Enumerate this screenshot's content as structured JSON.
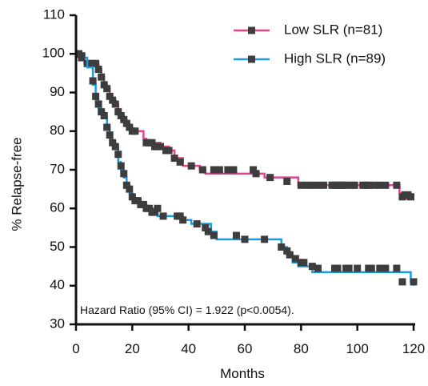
{
  "chart_data": {
    "type": "line",
    "title": "",
    "xlabel": "Months",
    "ylabel": "% Relapse-free",
    "xlim": [
      0,
      120
    ],
    "ylim": [
      30,
      110
    ],
    "xticks": [
      0,
      20,
      40,
      60,
      80,
      100,
      120
    ],
    "yticks": [
      30,
      40,
      50,
      60,
      70,
      80,
      90,
      100,
      110
    ],
    "grid": false,
    "legend_position": "top-right",
    "annotation": "Hazard Ratio (95% CI) = 1.922 (p<0.0054).",
    "censor_color": "#3d3d3d",
    "series": [
      {
        "name": "Low SLR (n=81)",
        "color": "#e8428c",
        "steps": [
          [
            0,
            100
          ],
          [
            1,
            99
          ],
          [
            3,
            97.5
          ],
          [
            8,
            96
          ],
          [
            9,
            94
          ],
          [
            10,
            92
          ],
          [
            11,
            91
          ],
          [
            12,
            89
          ],
          [
            13,
            88
          ],
          [
            14,
            87
          ],
          [
            15,
            85
          ],
          [
            16,
            84
          ],
          [
            17,
            83
          ],
          [
            18,
            82
          ],
          [
            19,
            81
          ],
          [
            20,
            80
          ],
          [
            24,
            78
          ],
          [
            25,
            77
          ],
          [
            30,
            76
          ],
          [
            33,
            75
          ],
          [
            35,
            73
          ],
          [
            38,
            71
          ],
          [
            44,
            70
          ],
          [
            46,
            69
          ],
          [
            67,
            68
          ],
          [
            79,
            66
          ],
          [
            115,
            64
          ],
          [
            116,
            62.5
          ],
          [
            120,
            62.5
          ]
        ],
        "censored": [
          [
            1,
            100
          ],
          [
            2,
            99
          ],
          [
            4,
            97.5
          ],
          [
            5,
            97.5
          ],
          [
            6,
            97.5
          ],
          [
            7,
            97.5
          ],
          [
            8,
            96
          ],
          [
            9,
            94
          ],
          [
            10,
            92
          ],
          [
            11,
            91
          ],
          [
            12,
            89
          ],
          [
            13,
            88
          ],
          [
            14,
            87
          ],
          [
            15,
            85
          ],
          [
            16,
            84
          ],
          [
            17,
            83
          ],
          [
            18,
            82
          ],
          [
            19,
            81
          ],
          [
            20,
            80
          ],
          [
            21,
            80
          ],
          [
            25,
            77
          ],
          [
            26,
            77
          ],
          [
            27,
            77
          ],
          [
            28,
            76
          ],
          [
            29,
            76
          ],
          [
            30,
            76
          ],
          [
            32,
            75
          ],
          [
            33,
            75
          ],
          [
            35,
            73
          ],
          [
            37,
            72
          ],
          [
            41,
            71
          ],
          [
            45,
            70
          ],
          [
            49,
            70
          ],
          [
            51,
            70
          ],
          [
            54,
            70
          ],
          [
            56,
            70
          ],
          [
            63,
            70
          ],
          [
            64,
            69
          ],
          [
            69,
            68
          ],
          [
            75,
            67
          ],
          [
            80,
            66
          ],
          [
            82,
            66
          ],
          [
            84,
            66
          ],
          [
            86,
            66
          ],
          [
            88,
            66
          ],
          [
            91,
            66
          ],
          [
            92,
            66
          ],
          [
            93,
            66
          ],
          [
            94,
            66
          ],
          [
            95,
            66
          ],
          [
            96,
            66
          ],
          [
            98,
            66
          ],
          [
            99,
            66
          ],
          [
            102,
            66
          ],
          [
            103,
            66
          ],
          [
            104,
            66
          ],
          [
            106,
            66
          ],
          [
            108,
            66
          ],
          [
            110,
            66
          ],
          [
            114,
            66
          ],
          [
            116,
            63
          ],
          [
            117,
            63.5
          ],
          [
            118,
            63.5
          ],
          [
            119,
            63
          ]
        ]
      },
      {
        "name": "High SLR (n=89)",
        "color": "#1a9be0",
        "steps": [
          [
            0,
            100
          ],
          [
            3,
            99
          ],
          [
            4,
            96.5
          ],
          [
            6,
            92
          ],
          [
            7,
            88
          ],
          [
            8,
            86
          ],
          [
            9,
            85
          ],
          [
            10,
            84
          ],
          [
            11,
            81
          ],
          [
            12,
            78
          ],
          [
            13,
            77
          ],
          [
            14,
            76
          ],
          [
            15,
            72
          ],
          [
            16,
            70
          ],
          [
            17,
            68
          ],
          [
            18,
            66
          ],
          [
            19,
            64
          ],
          [
            20,
            63
          ],
          [
            21,
            62
          ],
          [
            23,
            61
          ],
          [
            25,
            60
          ],
          [
            29,
            58
          ],
          [
            35,
            58
          ],
          [
            38,
            57
          ],
          [
            41,
            56
          ],
          [
            48,
            54
          ],
          [
            50,
            52
          ],
          [
            73,
            50
          ],
          [
            75,
            48
          ],
          [
            77,
            46
          ],
          [
            79,
            45
          ],
          [
            84,
            43.5
          ],
          [
            119,
            41
          ],
          [
            120,
            40
          ]
        ],
        "censored": [
          [
            1,
            100
          ],
          [
            2,
            99.5
          ],
          [
            6,
            93
          ],
          [
            7,
            89
          ],
          [
            8,
            87
          ],
          [
            9,
            85
          ],
          [
            10,
            84
          ],
          [
            11,
            81
          ],
          [
            12,
            79
          ],
          [
            13,
            77
          ],
          [
            14,
            76
          ],
          [
            15,
            74
          ],
          [
            16,
            71
          ],
          [
            17,
            69
          ],
          [
            18,
            66
          ],
          [
            19,
            65
          ],
          [
            20,
            63
          ],
          [
            21,
            62
          ],
          [
            22,
            62
          ],
          [
            23,
            61
          ],
          [
            24,
            61
          ],
          [
            25,
            60
          ],
          [
            26,
            60
          ],
          [
            27,
            59
          ],
          [
            28,
            59
          ],
          [
            29,
            60
          ],
          [
            31,
            58
          ],
          [
            36,
            58
          ],
          [
            37,
            58
          ],
          [
            38,
            57
          ],
          [
            43,
            56
          ],
          [
            46,
            55
          ],
          [
            47,
            54
          ],
          [
            49,
            53
          ],
          [
            57,
            53
          ],
          [
            60,
            52
          ],
          [
            67,
            52
          ],
          [
            73,
            50
          ],
          [
            75,
            49
          ],
          [
            76,
            48
          ],
          [
            78,
            47
          ],
          [
            80,
            46
          ],
          [
            81,
            46
          ],
          [
            84,
            45
          ],
          [
            86,
            44.5
          ],
          [
            92,
            44.5
          ],
          [
            93,
            44.5
          ],
          [
            96,
            44.5
          ],
          [
            97,
            44.5
          ],
          [
            100,
            44.5
          ],
          [
            104,
            44.5
          ],
          [
            105,
            44.5
          ],
          [
            108,
            44.5
          ],
          [
            110,
            44.5
          ],
          [
            114,
            44.5
          ],
          [
            116,
            41
          ],
          [
            120,
            41
          ]
        ]
      }
    ]
  }
}
